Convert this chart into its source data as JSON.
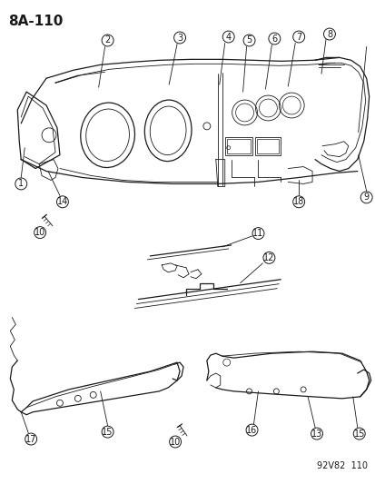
{
  "title": "8A-110",
  "footer": "92V82  110",
  "bg_color": "#ffffff",
  "line_color": "#1a1a1a",
  "title_fontsize": 11,
  "footer_fontsize": 7,
  "label_r": 6.5,
  "label_fontsize": 7,
  "lw_thin": 0.6,
  "lw_med": 0.9,
  "lw_thick": 1.3
}
